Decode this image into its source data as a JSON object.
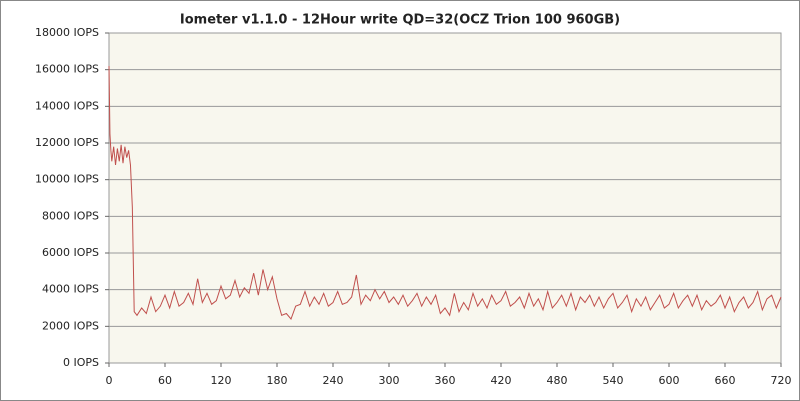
{
  "chart_data": {
    "type": "line",
    "title": "Iometer v1.1.0 - 12Hour write QD=32(OCZ Trion 100 960GB)",
    "series": [
      {
        "name": "IOPS",
        "color": "#c0504d",
        "x": [
          0,
          1,
          2,
          3,
          5,
          7,
          9,
          11,
          13,
          15,
          17,
          19,
          21,
          23,
          25,
          27,
          30,
          35,
          40,
          45,
          50,
          55,
          60,
          65,
          70,
          75,
          80,
          85,
          90,
          95,
          100,
          105,
          110,
          115,
          120,
          125,
          130,
          135,
          140,
          145,
          150,
          155,
          160,
          165,
          170,
          175,
          180,
          185,
          190,
          195,
          200,
          205,
          210,
          215,
          220,
          225,
          230,
          235,
          240,
          245,
          250,
          255,
          260,
          265,
          270,
          275,
          280,
          285,
          290,
          295,
          300,
          305,
          310,
          315,
          320,
          325,
          330,
          335,
          340,
          345,
          350,
          355,
          360,
          365,
          370,
          375,
          380,
          385,
          390,
          395,
          400,
          405,
          410,
          415,
          420,
          425,
          430,
          435,
          440,
          445,
          450,
          455,
          460,
          465,
          470,
          475,
          480,
          485,
          490,
          495,
          500,
          505,
          510,
          515,
          520,
          525,
          530,
          535,
          540,
          545,
          550,
          555,
          560,
          565,
          570,
          575,
          580,
          585,
          590,
          595,
          600,
          605,
          610,
          615,
          620,
          625,
          630,
          635,
          640,
          645,
          650,
          655,
          660,
          665,
          670,
          675,
          680,
          685,
          690,
          695,
          700,
          705,
          710,
          715,
          720
        ],
        "values": [
          16200,
          12500,
          11600,
          11000,
          11800,
          10800,
          11700,
          11000,
          11900,
          10900,
          11800,
          11200,
          11600,
          10800,
          8500,
          2800,
          2600,
          3000,
          2700,
          3600,
          2800,
          3100,
          3700,
          3000,
          3900,
          3100,
          3300,
          3800,
          3200,
          4600,
          3300,
          3800,
          3200,
          3400,
          4200,
          3500,
          3700,
          4500,
          3600,
          4100,
          3800,
          4900,
          3700,
          5100,
          4000,
          4700,
          3500,
          2600,
          2700,
          2400,
          3100,
          3200,
          3900,
          3100,
          3600,
          3200,
          3800,
          3100,
          3300,
          3900,
          3200,
          3300,
          3600,
          4800,
          3200,
          3700,
          3400,
          4000,
          3500,
          3900,
          3300,
          3600,
          3200,
          3700,
          3100,
          3400,
          3800,
          3100,
          3600,
          3200,
          3700,
          2700,
          3000,
          2600,
          3800,
          2800,
          3300,
          2900,
          3800,
          3100,
          3500,
          3000,
          3700,
          3200,
          3400,
          3900,
          3100,
          3300,
          3600,
          3000,
          3800,
          3100,
          3500,
          2900,
          3900,
          3000,
          3300,
          3700,
          3100,
          3800,
          2900,
          3600,
          3300,
          3700,
          3100,
          3600,
          3000,
          3500,
          3800,
          3000,
          3300,
          3700,
          2800,
          3500,
          3100,
          3600,
          2900,
          3300,
          3700,
          3000,
          3200,
          3800,
          3000,
          3400,
          3700,
          3100,
          3700,
          2900,
          3400,
          3100,
          3300,
          3700,
          3000,
          3600,
          2800,
          3300,
          3600,
          3000,
          3300,
          3900,
          2900,
          3500,
          3700,
          3000,
          3600
        ]
      }
    ],
    "xlim": [
      0,
      720
    ],
    "xticks": [
      0,
      60,
      120,
      180,
      240,
      300,
      360,
      420,
      480,
      540,
      600,
      660,
      720
    ],
    "ylim": [
      0,
      18000
    ],
    "yticks": [
      {
        "value": 0,
        "label": "0 IOPS"
      },
      {
        "value": 2000,
        "label": "2000 IOPS"
      },
      {
        "value": 4000,
        "label": "4000 IOPS"
      },
      {
        "value": 6000,
        "label": "6000 IOPS"
      },
      {
        "value": 8000,
        "label": "8000 IOPS"
      },
      {
        "value": 10000,
        "label": "10000 IOPS"
      },
      {
        "value": 12000,
        "label": "12000 IOPS"
      },
      {
        "value": 14000,
        "label": "14000 IOPS"
      },
      {
        "value": 16000,
        "label": "16000 IOPS"
      },
      {
        "value": 18000,
        "label": "18000 IOPS"
      }
    ],
    "grid": true
  }
}
